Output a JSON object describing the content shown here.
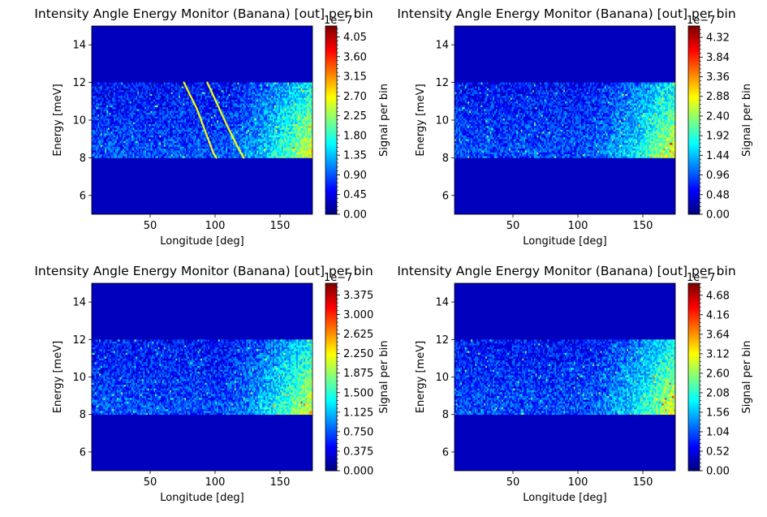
{
  "chart_data": [
    {
      "type": "heatmap",
      "title": "Intensity Angle Energy Monitor (Banana) [out] per bin",
      "xlabel": "Longitude [deg]",
      "ylabel": "Energy [meV]",
      "xlim": [
        5,
        175
      ],
      "ylim": [
        5,
        15
      ],
      "xticks": [
        50,
        100,
        150
      ],
      "yticks": [
        6,
        8,
        10,
        12,
        14
      ],
      "signal_band_energy": [
        8,
        12
      ],
      "colormap": "jet",
      "colorbar": {
        "label": "Signal per bin",
        "offset_text": "1e−7",
        "range": [
          0,
          4.3
        ],
        "tick_values": [
          0,
          0.45,
          0.9,
          1.35,
          1.8,
          2.25,
          2.7,
          3.15,
          3.6,
          4.05
        ],
        "tick_labels": [
          "0.00",
          "0.45",
          "0.90",
          "1.35",
          "1.80",
          "2.25",
          "2.70",
          "3.15",
          "3.60",
          "4.05"
        ]
      },
      "intensity_trend": "increases with longitude, highest near 165–175 deg at 8–10 meV",
      "curves": [
        {
          "points": [
            [
              76,
              12
            ],
            [
              86,
              10.6
            ],
            [
              93,
              9.3
            ],
            [
              99,
              8.2
            ],
            [
              101,
              8
            ]
          ]
        },
        {
          "points": [
            [
              94,
              12
            ],
            [
              102,
              10.8
            ],
            [
              110,
              9.6
            ],
            [
              118,
              8.5
            ],
            [
              122,
              8
            ]
          ]
        }
      ]
    },
    {
      "type": "heatmap",
      "title": "Intensity Angle Energy Monitor (Banana) [out] per bin",
      "xlabel": "Longitude [deg]",
      "ylabel": "Energy [meV]",
      "xlim": [
        5,
        175
      ],
      "ylim": [
        5,
        15
      ],
      "xticks": [
        50,
        100,
        150
      ],
      "yticks": [
        6,
        8,
        10,
        12,
        14
      ],
      "signal_band_energy": [
        8,
        12
      ],
      "colormap": "jet",
      "colorbar": {
        "label": "Signal per bin",
        "offset_text": "1e−7",
        "range": [
          0,
          4.6
        ],
        "tick_values": [
          0,
          0.48,
          0.96,
          1.44,
          1.92,
          2.4,
          2.88,
          3.36,
          3.84,
          4.32
        ],
        "tick_labels": [
          "0.00",
          "0.48",
          "0.96",
          "1.44",
          "1.92",
          "2.40",
          "2.88",
          "3.36",
          "3.84",
          "4.32"
        ]
      },
      "intensity_trend": "increases with longitude, highest near 165–175 deg",
      "curves": []
    },
    {
      "type": "heatmap",
      "title": "Intensity Angle Energy Monitor (Banana) [out] per bin",
      "xlabel": "Longitude [deg]",
      "ylabel": "Energy [meV]",
      "xlim": [
        5,
        175
      ],
      "ylim": [
        5,
        15
      ],
      "xticks": [
        50,
        100,
        150
      ],
      "yticks": [
        6,
        8,
        10,
        12,
        14
      ],
      "signal_band_energy": [
        8,
        12
      ],
      "colormap": "jet",
      "colorbar": {
        "label": "Signal per bin",
        "offset_text": "1e−7",
        "range": [
          0,
          3.6
        ],
        "tick_values": [
          0,
          0.375,
          0.75,
          1.125,
          1.5,
          1.875,
          2.25,
          2.625,
          3.0,
          3.375
        ],
        "tick_labels": [
          "0.000",
          "0.375",
          "0.750",
          "1.125",
          "1.500",
          "1.875",
          "2.250",
          "2.625",
          "3.000",
          "3.375"
        ]
      },
      "intensity_trend": "increases with longitude, highest near 165–175 deg at 8–10 meV",
      "curves": []
    },
    {
      "type": "heatmap",
      "title": "Intensity Angle Energy Monitor (Banana) [out] per bin",
      "xlabel": "Longitude [deg]",
      "ylabel": "Energy [meV]",
      "xlim": [
        5,
        175
      ],
      "ylim": [
        5,
        15
      ],
      "xticks": [
        50,
        100,
        150
      ],
      "yticks": [
        6,
        8,
        10,
        12,
        14
      ],
      "signal_band_energy": [
        8,
        12
      ],
      "colormap": "jet",
      "colorbar": {
        "label": "Signal per bin",
        "offset_text": "1e−7",
        "range": [
          0,
          5.0
        ],
        "tick_values": [
          0,
          0.52,
          1.04,
          1.56,
          2.08,
          2.6,
          3.12,
          3.64,
          4.16,
          4.68
        ],
        "tick_labels": [
          "0.00",
          "0.52",
          "1.04",
          "1.56",
          "2.08",
          "2.60",
          "3.12",
          "3.64",
          "4.16",
          "4.68"
        ]
      },
      "intensity_trend": "increases with longitude, highest near 165–175 deg",
      "curves": []
    }
  ]
}
